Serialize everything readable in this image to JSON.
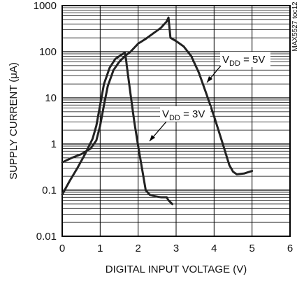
{
  "chart_data": {
    "type": "line",
    "xlabel": "DIGITAL INPUT VOLTAGE (V)",
    "ylabel": "SUPPLY CURRENT (μA)",
    "corner_code": "MAX5527 toc12",
    "x_ticks": [
      "0",
      "1",
      "2",
      "3",
      "4",
      "5",
      "6"
    ],
    "y_ticks": [
      "0.01",
      "0.1",
      "1",
      "10",
      "100",
      "1000"
    ],
    "xlim": [
      0,
      6
    ],
    "ylim": [
      0.01,
      1000
    ],
    "y_scale": "log",
    "grid": true,
    "series": [
      {
        "name": "VDD = 5V",
        "label_main": "V",
        "label_sub": "DD",
        "label_rest": " = 5V",
        "x": [
          0,
          0.25,
          0.5,
          0.75,
          0.9,
          1.0,
          1.1,
          1.2,
          1.35,
          1.5,
          1.65,
          1.8,
          2.0,
          2.2,
          2.4,
          2.6,
          2.75,
          2.8,
          2.85,
          3.0,
          3.2,
          3.4,
          3.6,
          3.8,
          4.0,
          4.2,
          4.4,
          4.5,
          4.6,
          4.8,
          5.0
        ],
        "y": [
          0.4,
          0.5,
          0.6,
          0.8,
          1.2,
          2.5,
          7,
          18,
          40,
          60,
          80,
          100,
          150,
          190,
          250,
          330,
          450,
          550,
          200,
          170,
          130,
          80,
          35,
          12,
          4,
          1.2,
          0.35,
          0.25,
          0.22,
          0.23,
          0.26
        ]
      },
      {
        "name": "VDD = 3V",
        "label_main": "V",
        "label_sub": "DD",
        "label_rest": " = 3V",
        "x": [
          0,
          0.2,
          0.4,
          0.6,
          0.8,
          0.9,
          1.0,
          1.1,
          1.25,
          1.4,
          1.55,
          1.65,
          1.68,
          1.7,
          1.8,
          1.9,
          2.0,
          2.1,
          2.2,
          2.3,
          2.4,
          2.6,
          2.75,
          2.8,
          2.9
        ],
        "y": [
          0.08,
          0.16,
          0.3,
          0.6,
          1.3,
          2.5,
          7,
          20,
          45,
          70,
          85,
          95,
          70,
          50,
          12,
          3,
          0.9,
          0.3,
          0.1,
          0.08,
          0.075,
          0.07,
          0.07,
          0.06,
          0.05
        ]
      }
    ]
  }
}
